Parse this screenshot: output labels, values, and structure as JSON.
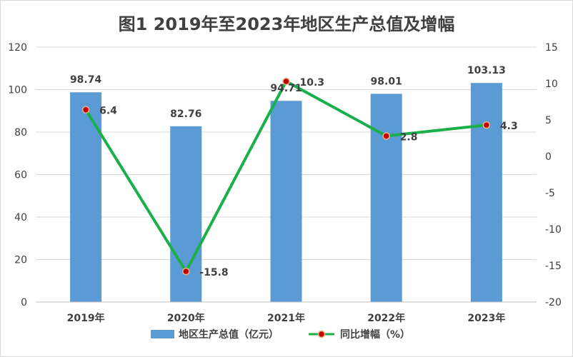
{
  "chart_data": {
    "type": "bar+line",
    "title": "图1 2019年至2023年地区生产总值及增幅",
    "categories": [
      "2019年",
      "2020年",
      "2021年",
      "2022年",
      "2023年"
    ],
    "series": [
      {
        "name": "地区生产总值（亿元）",
        "type": "bar",
        "axis": "left",
        "values": [
          98.74,
          82.76,
          94.71,
          98.01,
          103.13
        ],
        "labels": [
          "98.74",
          "82.76",
          "94.71",
          "98.01",
          "103.13"
        ]
      },
      {
        "name": "同比增幅（%）",
        "type": "line",
        "axis": "right",
        "values": [
          6.4,
          -15.8,
          10.3,
          2.8,
          4.3
        ],
        "labels": [
          "6.4",
          "-15.8",
          "10.3",
          "2.8",
          "4.3"
        ]
      }
    ],
    "ylim_left": [
      0,
      120
    ],
    "yticks_left": [
      "0",
      "20",
      "40",
      "60",
      "80",
      "100",
      "120"
    ],
    "ylim_right": [
      -20,
      15
    ],
    "yticks_right": [
      "-20",
      "-15",
      "-10",
      "-5",
      "0",
      "5",
      "10",
      "15"
    ],
    "grid": true,
    "legend_position": "bottom",
    "colors": {
      "bar": "#5b9bd5",
      "line": "#1aaf4b",
      "marker_fill": "#c00000",
      "marker_edge": "#f4b183",
      "grid": "#d9d9d9",
      "text": "#404040"
    }
  }
}
